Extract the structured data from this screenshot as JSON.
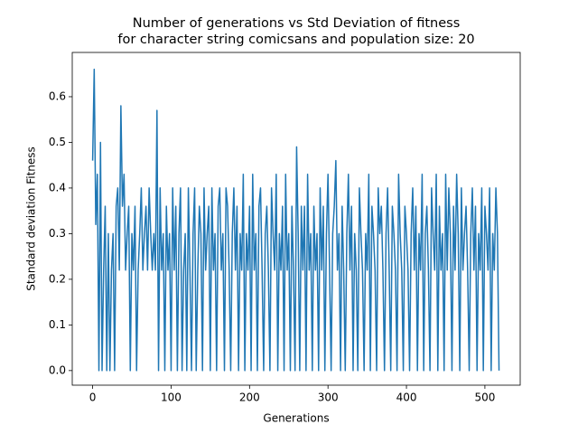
{
  "chart_data": {
    "type": "line",
    "title": "Number of generations vs Std Deviation of fitness",
    "subtitle": "for character string comicsans and population size: 20",
    "x_label": "Generations",
    "y_label": "Standard deviation Fitness",
    "xlim": [
      -26,
      545
    ],
    "ylim": [
      -0.032,
      0.697
    ],
    "xticks": [
      0,
      100,
      200,
      300,
      400,
      500
    ],
    "yticks": [
      {
        "value": 0,
        "label": "0.0"
      },
      {
        "value": 0.1,
        "label": "0.1"
      },
      {
        "value": 0.2,
        "label": "0.2"
      },
      {
        "value": 0.3,
        "label": "0.3"
      },
      {
        "value": 0.4,
        "label": "0.4"
      },
      {
        "value": 0.5,
        "label": "0.5"
      },
      {
        "value": 0.6,
        "label": "0.6"
      }
    ],
    "color": "#1f77b4",
    "x": [
      0,
      2,
      4,
      6,
      8,
      10,
      12,
      14,
      16,
      18,
      20,
      22,
      24,
      26,
      28,
      30,
      32,
      34,
      36,
      38,
      40,
      42,
      44,
      46,
      48,
      50,
      52,
      54,
      56,
      58,
      60,
      62,
      64,
      66,
      68,
      70,
      72,
      74,
      76,
      78,
      80,
      82,
      84,
      86,
      88,
      90,
      92,
      94,
      96,
      98,
      100,
      102,
      104,
      106,
      108,
      110,
      112,
      114,
      116,
      118,
      120,
      122,
      124,
      126,
      128,
      130,
      132,
      134,
      136,
      138,
      140,
      142,
      144,
      146,
      148,
      150,
      152,
      154,
      156,
      158,
      160,
      162,
      164,
      166,
      168,
      170,
      172,
      174,
      176,
      178,
      180,
      182,
      184,
      186,
      188,
      190,
      192,
      194,
      196,
      198,
      200,
      202,
      204,
      206,
      208,
      210,
      212,
      214,
      216,
      218,
      220,
      222,
      224,
      226,
      228,
      230,
      232,
      234,
      236,
      238,
      240,
      242,
      244,
      246,
      248,
      250,
      252,
      254,
      256,
      258,
      260,
      262,
      264,
      266,
      268,
      270,
      272,
      274,
      276,
      278,
      280,
      282,
      284,
      286,
      288,
      290,
      292,
      294,
      296,
      298,
      300,
      302,
      304,
      306,
      308,
      310,
      312,
      314,
      316,
      318,
      320,
      322,
      324,
      326,
      328,
      330,
      332,
      334,
      336,
      338,
      340,
      342,
      344,
      346,
      348,
      350,
      352,
      354,
      356,
      358,
      360,
      362,
      364,
      366,
      368,
      370,
      372,
      374,
      376,
      378,
      380,
      382,
      384,
      386,
      388,
      390,
      392,
      394,
      396,
      398,
      400,
      402,
      404,
      406,
      408,
      410,
      412,
      414,
      416,
      418,
      420,
      422,
      424,
      426,
      428,
      430,
      432,
      434,
      436,
      438,
      440,
      442,
      444,
      446,
      448,
      450,
      452,
      454,
      456,
      458,
      460,
      462,
      464,
      466,
      468,
      470,
      472,
      474,
      476,
      478,
      480,
      482,
      484,
      486,
      488,
      490,
      492,
      494,
      496,
      498,
      500,
      502,
      504,
      506,
      508,
      510,
      512,
      514,
      516,
      518
    ],
    "values": [
      0.46,
      0.66,
      0.32,
      0.43,
      0.0,
      0.5,
      0.0,
      0.22,
      0.36,
      0.0,
      0.3,
      0.0,
      0.22,
      0.3,
      0.0,
      0.36,
      0.4,
      0.22,
      0.58,
      0.36,
      0.43,
      0.22,
      0.3,
      0.36,
      0.0,
      0.3,
      0.22,
      0.36,
      0.0,
      0.22,
      0.3,
      0.4,
      0.22,
      0.3,
      0.36,
      0.22,
      0.4,
      0.3,
      0.22,
      0.3,
      0.22,
      0.57,
      0.0,
      0.4,
      0.22,
      0.3,
      0.0,
      0.36,
      0.22,
      0.3,
      0.0,
      0.4,
      0.22,
      0.36,
      0.0,
      0.3,
      0.4,
      0.0,
      0.22,
      0.3,
      0.0,
      0.4,
      0.22,
      0.0,
      0.3,
      0.4,
      0.0,
      0.22,
      0.36,
      0.3,
      0.0,
      0.4,
      0.22,
      0.3,
      0.36,
      0.0,
      0.4,
      0.22,
      0.3,
      0.0,
      0.36,
      0.4,
      0.22,
      0.3,
      0.0,
      0.4,
      0.36,
      0.22,
      0.0,
      0.3,
      0.4,
      0.22,
      0.36,
      0.0,
      0.3,
      0.22,
      0.43,
      0.0,
      0.3,
      0.22,
      0.36,
      0.0,
      0.43,
      0.22,
      0.3,
      0.0,
      0.36,
      0.4,
      0.22,
      0.0,
      0.3,
      0.36,
      0.22,
      0.0,
      0.4,
      0.3,
      0.22,
      0.43,
      0.0,
      0.3,
      0.22,
      0.36,
      0.0,
      0.43,
      0.22,
      0.3,
      0.0,
      0.36,
      0.22,
      0.0,
      0.49,
      0.3,
      0.0,
      0.36,
      0.22,
      0.36,
      0.0,
      0.43,
      0.22,
      0.3,
      0.0,
      0.36,
      0.22,
      0.3,
      0.0,
      0.4,
      0.22,
      0.36,
      0.0,
      0.3,
      0.43,
      0.22,
      0.0,
      0.3,
      0.36,
      0.46,
      0.22,
      0.3,
      0.0,
      0.36,
      0.22,
      0.0,
      0.3,
      0.43,
      0.22,
      0.36,
      0.0,
      0.3,
      0.22,
      0.0,
      0.4,
      0.3,
      0.22,
      0.0,
      0.3,
      0.22,
      0.43,
      0.0,
      0.36,
      0.3,
      0.22,
      0.0,
      0.4,
      0.3,
      0.36,
      0.22,
      0.0,
      0.3,
      0.4,
      0.22,
      0.0,
      0.36,
      0.3,
      0.22,
      0.0,
      0.43,
      0.3,
      0.22,
      0.0,
      0.36,
      0.3,
      0.22,
      0.0,
      0.3,
      0.4,
      0.22,
      0.36,
      0.0,
      0.3,
      0.22,
      0.43,
      0.0,
      0.3,
      0.36,
      0.22,
      0.0,
      0.4,
      0.3,
      0.22,
      0.43,
      0.0,
      0.36,
      0.22,
      0.3,
      0.0,
      0.43,
      0.22,
      0.4,
      0.3,
      0.0,
      0.36,
      0.22,
      0.43,
      0.3,
      0.0,
      0.4,
      0.22,
      0.3,
      0.36,
      0.22,
      0.0,
      0.3,
      0.4,
      0.22,
      0.36,
      0.0,
      0.3,
      0.22,
      0.4,
      0.0,
      0.36,
      0.3,
      0.22,
      0.4,
      0.0,
      0.3,
      0.22,
      0.4,
      0.3,
      0.0
    ]
  }
}
